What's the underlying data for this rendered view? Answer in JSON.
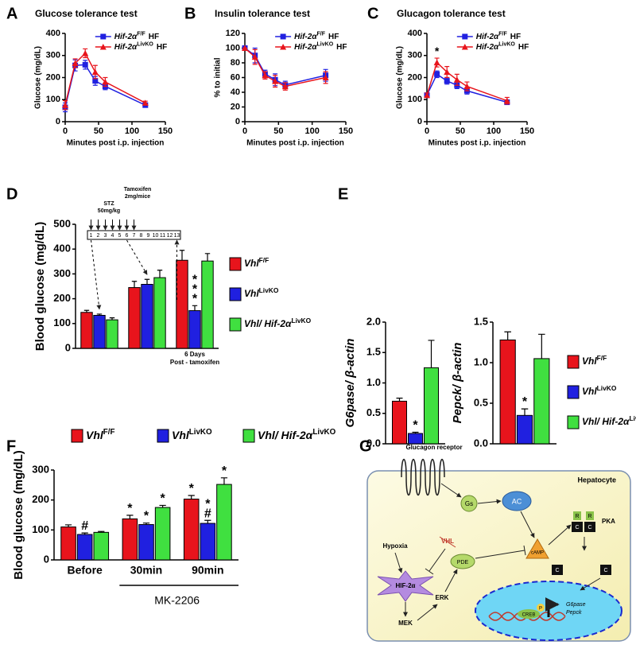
{
  "chart_data": [
    {
      "panel": "A",
      "type": "line",
      "title": "Glucose tolerance test",
      "x_label": "Minutes post i.p. injection",
      "y_label": "Glucose (mg/dL)",
      "x": [
        0,
        15,
        30,
        45,
        60,
        120
      ],
      "xlim": [
        0,
        150
      ],
      "xticks": [
        0,
        50,
        100,
        150
      ],
      "ylim": [
        0,
        400
      ],
      "yticks": [
        0,
        100,
        200,
        300,
        400
      ],
      "legend": "upper right",
      "series": [
        {
          "name": {
            "text": "Hif-2α",
            "sup": "F/F",
            "suffix": "HF"
          },
          "color": "#2020e0",
          "marker": "square",
          "values": [
            65,
            255,
            258,
            185,
            160,
            75
          ],
          "errors": [
            20,
            25,
            20,
            20,
            15,
            8
          ]
        },
        {
          "name": {
            "text": "Hif-2α",
            "sup": "LivKO",
            "suffix": "HF"
          },
          "color": "#e8141c",
          "marker": "triangle",
          "values": [
            75,
            265,
            310,
            225,
            180,
            85
          ],
          "errors": [
            20,
            20,
            20,
            30,
            20,
            8
          ]
        }
      ]
    },
    {
      "panel": "B",
      "type": "line",
      "title": "Insulin tolerance test",
      "x_label": "Minutes post i.p. injection",
      "y_label": "% to initial",
      "x": [
        0,
        15,
        30,
        45,
        60,
        120
      ],
      "xlim": [
        0,
        150
      ],
      "xticks": [
        0,
        50,
        100,
        150
      ],
      "ylim": [
        0,
        120
      ],
      "yticks": [
        0,
        20,
        40,
        60,
        80,
        100,
        120
      ],
      "legend": "upper right",
      "series": [
        {
          "name": {
            "text": "Hif-2α",
            "sup": "F/F",
            "suffix": "HF"
          },
          "color": "#2020e0",
          "marker": "square",
          "values": [
            100,
            90,
            65,
            57,
            50,
            63
          ],
          "errors": [
            0,
            10,
            5,
            8,
            5,
            8
          ]
        },
        {
          "name": {
            "text": "Hif-2α",
            "sup": "LivKO",
            "suffix": "HF"
          },
          "color": "#e8141c",
          "marker": "triangle",
          "values": [
            100,
            88,
            63,
            55,
            48,
            60
          ],
          "errors": [
            0,
            10,
            5,
            8,
            5,
            8
          ]
        }
      ]
    },
    {
      "panel": "C",
      "type": "line",
      "title": "Glucagon tolerance test",
      "x_label": "Minutes post i.p. injection",
      "y_label": "Glucose (mg/dL)",
      "x": [
        0,
        15,
        30,
        45,
        60,
        120
      ],
      "xlim": [
        0,
        150
      ],
      "xticks": [
        0,
        50,
        100,
        150
      ],
      "ylim": [
        0,
        400
      ],
      "yticks": [
        0,
        100,
        200,
        300,
        400
      ],
      "legend": "upper right",
      "annotations": [
        {
          "x": 15,
          "text": "*"
        }
      ],
      "series": [
        {
          "name": {
            "text": "Hif-2α",
            "sup": "F/F",
            "suffix": "HF"
          },
          "color": "#2020e0",
          "marker": "square",
          "values": [
            120,
            215,
            185,
            165,
            140,
            88
          ],
          "errors": [
            10,
            15,
            15,
            15,
            15,
            10
          ]
        },
        {
          "name": {
            "text": "Hif-2α",
            "sup": "LivKO",
            "suffix": "HF"
          },
          "color": "#e8141c",
          "marker": "triangle",
          "values": [
            120,
            268,
            225,
            190,
            160,
            95
          ],
          "errors": [
            10,
            20,
            25,
            25,
            20,
            15
          ]
        }
      ]
    },
    {
      "panel": "D",
      "type": "bar",
      "y_label": "Blood glucose (mg/dL)",
      "ylim": [
        0,
        500
      ],
      "yticks": [
        0,
        100,
        200,
        300,
        400,
        500
      ],
      "timeline": {
        "days": [
          1,
          2,
          3,
          4,
          5,
          6,
          7,
          8,
          9,
          10,
          11,
          12,
          13
        ],
        "stz": [
          "STZ",
          "50mg/kg"
        ],
        "tamoxifen": [
          "Tamoxifen",
          "2mg/mice"
        ],
        "note": [
          "6 Days",
          "Post - tamoxifen"
        ]
      },
      "series": [
        {
          "name": {
            "text": "Vhl",
            "sup": "F/F"
          },
          "color": "#e8141c",
          "values": [
            145,
            245,
            355
          ],
          "errors": [
            8,
            25,
            40
          ],
          "significance": [
            null,
            null,
            null
          ]
        },
        {
          "name": {
            "text": "Vhl",
            "sup": "LivKO"
          },
          "color": "#2020e0",
          "values": [
            133,
            258,
            152
          ],
          "errors": [
            5,
            20,
            20
          ],
          "significance": [
            null,
            null,
            "***"
          ]
        },
        {
          "name": {
            "text": "Vhl/ Hif-2α",
            "sup": "LivKO"
          },
          "color": "#40e040",
          "values": [
            115,
            285,
            352
          ],
          "errors": [
            8,
            30,
            30
          ],
          "significance": [
            null,
            null,
            null
          ]
        }
      ]
    },
    {
      "panel": "E",
      "type": "bar",
      "y_label": "G6pase/ β-actin",
      "ylim": [
        0,
        2
      ],
      "yticks": [
        {
          "value": 0,
          "label": "0.0"
        },
        0.5,
        {
          "value": 1,
          "label": "1.0"
        },
        1.5,
        {
          "value": 2,
          "label": "2.0"
        }
      ],
      "series": [
        {
          "color": "#e8141c",
          "values": [
            0.7
          ],
          "errors": [
            0.05
          ],
          "significance": [
            null
          ]
        },
        {
          "color": "#2020e0",
          "values": [
            0.17
          ],
          "errors": [
            0.02
          ],
          "significance": [
            "*"
          ]
        },
        {
          "color": "#40e040",
          "values": [
            1.25
          ],
          "errors": [
            0.45
          ],
          "significance": [
            null
          ]
        }
      ]
    },
    {
      "type": "bar",
      "y_label": "Pepck/ β-actin",
      "ylim": [
        0,
        1.5
      ],
      "yticks": [
        {
          "value": 0,
          "label": "0.0"
        },
        0.5,
        {
          "value": 1,
          "label": "1.0"
        },
        1.5
      ],
      "series": [
        {
          "name": {
            "text": "Vhl",
            "sup": "F/F"
          },
          "color": "#e8141c",
          "values": [
            1.28
          ],
          "errors": [
            0.1
          ],
          "significance": [
            null
          ]
        },
        {
          "name": {
            "text": "Vhl",
            "sup": "LivKO"
          },
          "color": "#2020e0",
          "values": [
            0.35
          ],
          "errors": [
            0.08
          ],
          "significance": [
            "*"
          ]
        },
        {
          "name": {
            "text": "Vhl/ Hif-2α",
            "sup": "LivKO"
          },
          "color": "#40e040",
          "values": [
            1.05
          ],
          "errors": [
            0.3
          ],
          "significance": [
            null
          ]
        }
      ]
    },
    {
      "panel": "F",
      "type": "bar",
      "y_label": "Blood glucose (mg/dL)",
      "categories": [
        "Before",
        "30min",
        "90min"
      ],
      "bracket": "MK-2206",
      "ylim": [
        0,
        300
      ],
      "yticks": [
        0,
        100,
        200,
        300
      ],
      "series": [
        {
          "name": {
            "text": "Vhl",
            "sup": "F/F"
          },
          "color": "#e8141c",
          "values": [
            110,
            137,
            203
          ],
          "errors": [
            7,
            12,
            12
          ],
          "significance": [
            null,
            "*",
            "*"
          ]
        },
        {
          "name": {
            "text": "Vhl",
            "sup": "LivKO"
          },
          "color": "#2020e0",
          "values": [
            85,
            118,
            122
          ],
          "errors": [
            5,
            5,
            10
          ],
          "significance": [
            "#",
            "*",
            "*#"
          ]
        },
        {
          "name": {
            "text": "Vhl/ Hif-2α",
            "sup": "LivKO"
          },
          "color": "#40e040",
          "values": [
            92,
            175,
            252
          ],
          "errors": [
            3,
            7,
            22
          ],
          "significance": [
            null,
            "*",
            "*"
          ]
        }
      ]
    }
  ],
  "diagram": {
    "panel": "G",
    "receptor": "Glucagon receptor",
    "cell": "Hepatocyte",
    "gs": "Gs",
    "ac": "AC",
    "camp": "cAMP",
    "pka": "PKA",
    "pka_regulatory": [
      "R",
      "R"
    ],
    "pka_catalytic": [
      "C",
      "C",
      "C",
      "C"
    ],
    "hypoxia": "Hypoxia",
    "vhl": "VHL",
    "hif": "HIF-2α",
    "pde": "PDE",
    "erk": "ERK",
    "mek": "MEK",
    "creb": "CREB",
    "phospho": "P",
    "genes": [
      "G6pase",
      "Pepck"
    ]
  }
}
